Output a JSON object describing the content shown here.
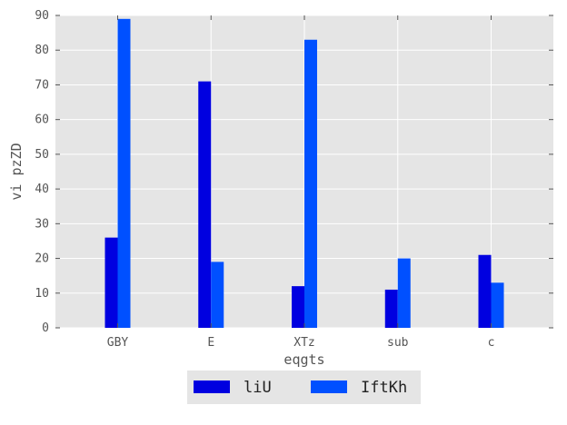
{
  "chart_data": {
    "type": "bar",
    "title": "",
    "xlabel": "eqgts",
    "ylabel": "vi pzZD",
    "categories": [
      "GBY",
      "E",
      "XTz",
      "sub",
      "c"
    ],
    "series": [
      {
        "name": "liU",
        "values": [
          26,
          71,
          12,
          11,
          21
        ],
        "color": "#0000e0"
      },
      {
        "name": "IftKh",
        "values": [
          89,
          19,
          83,
          20,
          13
        ],
        "color": "#0050ff"
      }
    ],
    "ylim": [
      0,
      90
    ],
    "yticks": [
      0,
      10,
      20,
      30,
      40,
      50,
      60,
      70,
      80,
      90
    ],
    "grid": true,
    "plot_background": "#e5e5e5",
    "grid_color": "#ffffff",
    "legend_position": "bottom-center"
  }
}
